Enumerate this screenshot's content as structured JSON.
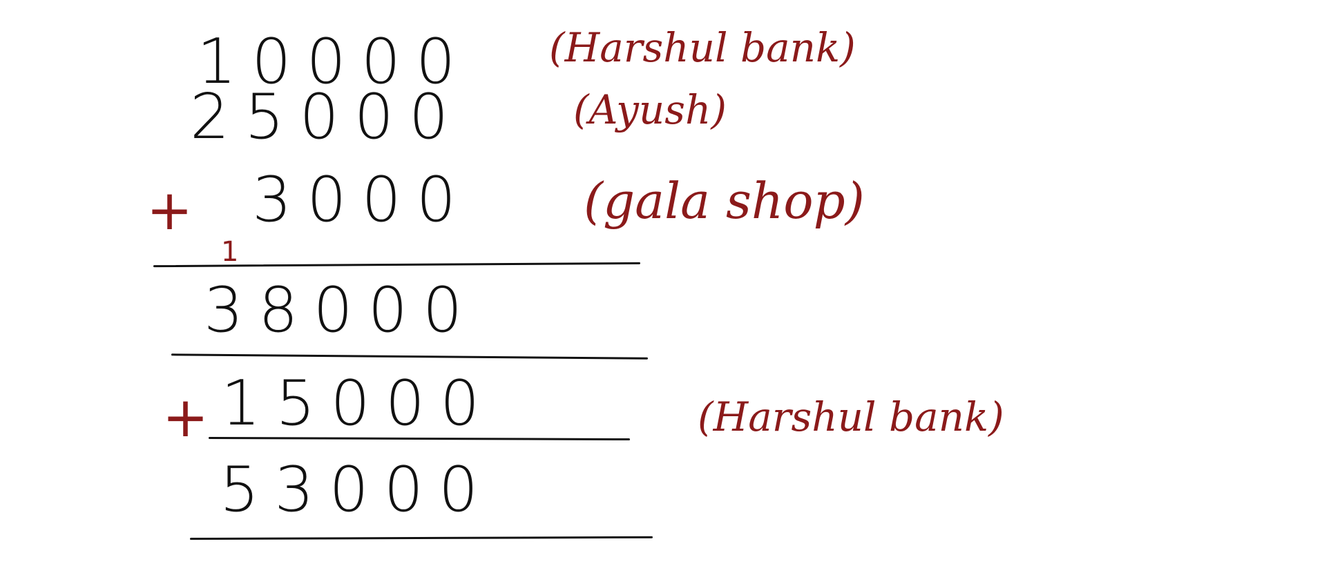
{
  "colors": {
    "ink": "#111111",
    "accent": "#8b1a1a"
  },
  "rows": {
    "r1": {
      "number": "10000",
      "label": "(Harshul bank)"
    },
    "r2": {
      "number": "25000",
      "label": "(Ayush)"
    },
    "r3": {
      "operator": "+",
      "number": "3000",
      "label": "(gala shop)"
    },
    "carry": "1",
    "subtotal": "38000",
    "r4": {
      "operator": "+",
      "number": "15000",
      "label": "(Harshul bank)"
    },
    "total": "53000"
  }
}
